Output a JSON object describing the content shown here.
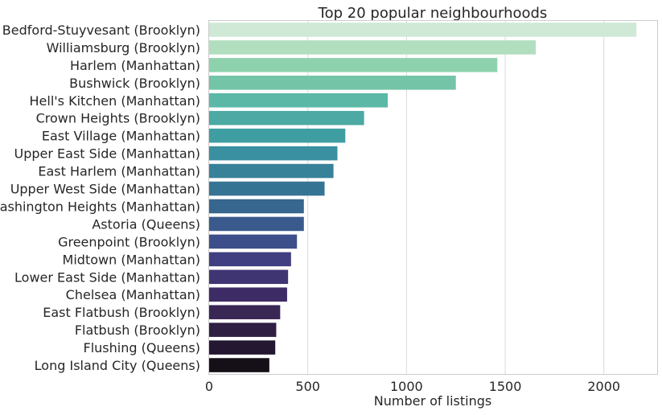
{
  "chart_data": {
    "type": "bar",
    "orientation": "horizontal",
    "title": "Top 20 popular neighbourhoods",
    "xlabel": "Number of listings",
    "ylabel": "",
    "xlim": [
      0,
      2270
    ],
    "xticks": [
      0,
      500,
      1000,
      1500,
      2000
    ],
    "grid": "vertical",
    "categories": [
      "Bedford-Stuyvesant (Brooklyn)",
      "Williamsburg (Brooklyn)",
      "Harlem (Manhattan)",
      "Bushwick (Brooklyn)",
      "Hell's Kitchen (Manhattan)",
      "Crown Heights (Brooklyn)",
      "East Village (Manhattan)",
      "Upper East Side (Manhattan)",
      "East Harlem (Manhattan)",
      "Upper West Side (Manhattan)",
      "Washington Heights (Manhattan)",
      "Astoria (Queens)",
      "Greenpoint (Brooklyn)",
      "Midtown (Manhattan)",
      "Lower East Side (Manhattan)",
      "Chelsea (Manhattan)",
      "East Flatbush (Brooklyn)",
      "Flatbush (Brooklyn)",
      "Flushing (Queens)",
      "Long Island City (Queens)"
    ],
    "values": [
      2165,
      1655,
      1460,
      1250,
      905,
      785,
      690,
      650,
      630,
      585,
      480,
      480,
      445,
      415,
      400,
      395,
      360,
      340,
      335,
      305
    ],
    "colors": [
      "#cfe9d6",
      "#b2dec0",
      "#8ed2ad",
      "#74c4a8",
      "#5bb8a6",
      "#4ca9a3",
      "#3f9ea2",
      "#3a90a0",
      "#378299",
      "#367494",
      "#37668e",
      "#3a5a8d",
      "#3d4f8b",
      "#403f81",
      "#403573",
      "#3d2c65",
      "#382655",
      "#2f1f43",
      "#241731",
      "#150f17"
    ]
  }
}
